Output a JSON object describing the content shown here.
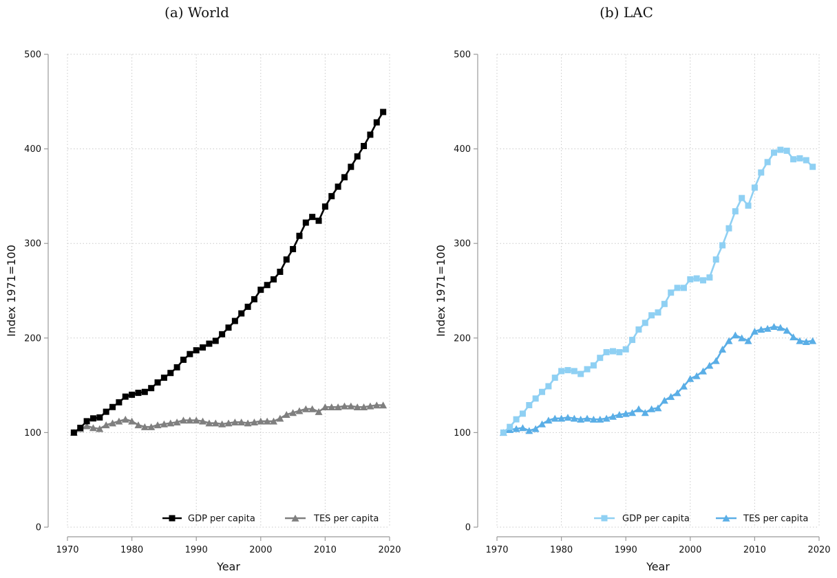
{
  "chart_data": [
    {
      "type": "line",
      "title": "(a) World",
      "xlabel": "Year",
      "ylabel": "Index 1971=100",
      "xlim": [
        1970,
        2020
      ],
      "ylim": [
        0,
        500
      ],
      "xticks": [
        1970,
        1980,
        1990,
        2000,
        2010,
        2020
      ],
      "yticks": [
        0,
        100,
        200,
        300,
        400,
        500
      ],
      "grid": true,
      "legend_position": "bottom-right",
      "x": [
        1971,
        1972,
        1973,
        1974,
        1975,
        1976,
        1977,
        1978,
        1979,
        1980,
        1981,
        1982,
        1983,
        1984,
        1985,
        1986,
        1987,
        1988,
        1989,
        1990,
        1991,
        1992,
        1993,
        1994,
        1995,
        1996,
        1997,
        1998,
        1999,
        2000,
        2001,
        2002,
        2003,
        2004,
        2005,
        2006,
        2007,
        2008,
        2009,
        2010,
        2011,
        2012,
        2013,
        2014,
        2015,
        2016,
        2017,
        2018,
        2019
      ],
      "series": [
        {
          "name": "GDP per capita",
          "marker": "square",
          "color": "#000000",
          "values": [
            100,
            105,
            112,
            115,
            116,
            122,
            127,
            132,
            138,
            140,
            142,
            143,
            147,
            153,
            158,
            163,
            169,
            177,
            183,
            187,
            190,
            194,
            197,
            204,
            211,
            218,
            226,
            233,
            241,
            251,
            256,
            262,
            270,
            283,
            294,
            308,
            322,
            328,
            324,
            339,
            350,
            360,
            370,
            381,
            392,
            403,
            415,
            428,
            439
          ]
        },
        {
          "name": "TES per capita",
          "marker": "triangle",
          "color": "#7f7f7f",
          "values": [
            100,
            104,
            107,
            105,
            104,
            108,
            110,
            112,
            114,
            112,
            108,
            106,
            106,
            108,
            109,
            110,
            111,
            113,
            113,
            113,
            112,
            110,
            110,
            109,
            110,
            111,
            111,
            110,
            111,
            112,
            112,
            112,
            115,
            119,
            121,
            123,
            125,
            125,
            122,
            127,
            127,
            127,
            128,
            128,
            127,
            127,
            128,
            129,
            129
          ]
        }
      ]
    },
    {
      "type": "line",
      "title": "(b) LAC",
      "xlabel": "Year",
      "ylabel": "Index 1971=100",
      "xlim": [
        1970,
        2020
      ],
      "ylim": [
        0,
        500
      ],
      "xticks": [
        1970,
        1980,
        1990,
        2000,
        2010,
        2020
      ],
      "yticks": [
        0,
        100,
        200,
        300,
        400,
        500
      ],
      "grid": true,
      "legend_position": "bottom-right",
      "x": [
        1971,
        1972,
        1973,
        1974,
        1975,
        1976,
        1977,
        1978,
        1979,
        1980,
        1981,
        1982,
        1983,
        1984,
        1985,
        1986,
        1987,
        1988,
        1989,
        1990,
        1991,
        1992,
        1993,
        1994,
        1995,
        1996,
        1997,
        1998,
        1999,
        2000,
        2001,
        2002,
        2003,
        2004,
        2005,
        2006,
        2007,
        2008,
        2009,
        2010,
        2011,
        2012,
        2013,
        2014,
        2015,
        2016,
        2017,
        2018,
        2019
      ],
      "series": [
        {
          "name": "GDP per capita",
          "marker": "square",
          "color": "#8fd0f3",
          "values": [
            100,
            106,
            114,
            120,
            129,
            136,
            143,
            149,
            158,
            165,
            166,
            165,
            162,
            167,
            171,
            179,
            185,
            186,
            185,
            188,
            198,
            209,
            216,
            224,
            227,
            236,
            248,
            253,
            253,
            262,
            263,
            261,
            264,
            283,
            298,
            316,
            334,
            348,
            340,
            359,
            375,
            386,
            396,
            399,
            398,
            389,
            390,
            388,
            381
          ]
        },
        {
          "name": "TES per capita",
          "marker": "triangle",
          "color": "#5aaee6",
          "values": [
            100,
            103,
            104,
            105,
            102,
            104,
            109,
            113,
            115,
            115,
            116,
            115,
            114,
            115,
            114,
            114,
            115,
            117,
            119,
            120,
            121,
            125,
            121,
            125,
            126,
            134,
            138,
            142,
            149,
            157,
            160,
            165,
            171,
            176,
            188,
            197,
            203,
            200,
            197,
            207,
            209,
            210,
            212,
            211,
            208,
            201,
            197,
            196,
            197
          ]
        }
      ]
    }
  ]
}
